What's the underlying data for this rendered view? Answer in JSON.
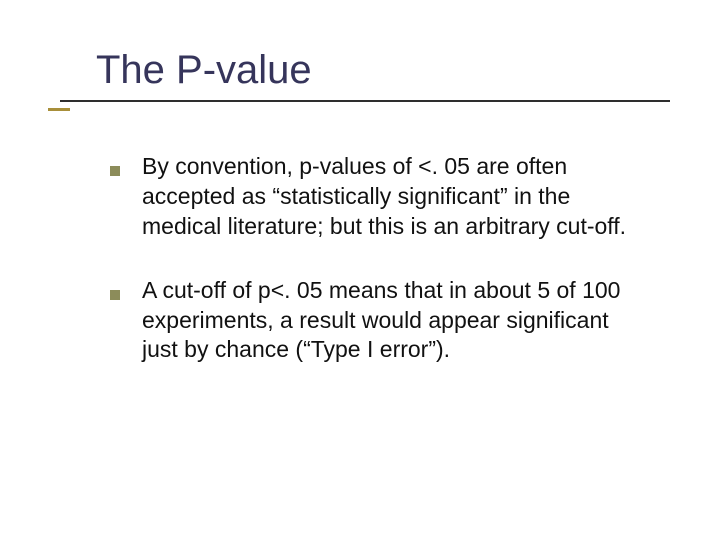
{
  "slide": {
    "title": "The P-value",
    "title_color": "#36355b",
    "title_fontsize": 40,
    "underline_color": "#2e2e2e",
    "accent_color": "#a88f3a",
    "background_color": "#ffffff",
    "bullets": [
      {
        "text": "By convention, p-values of <. 05 are often accepted as “statistically significant” in the medical literature; but this is an arbitrary cut-off."
      },
      {
        "text": "A cut-off of p<. 05 means that in about 5 of 100 experiments, a result would appear significant just by chance (“Type I error”)."
      }
    ],
    "bullet_marker_color": "#8c8c5a",
    "body_fontsize": 23,
    "body_color": "#111111"
  }
}
